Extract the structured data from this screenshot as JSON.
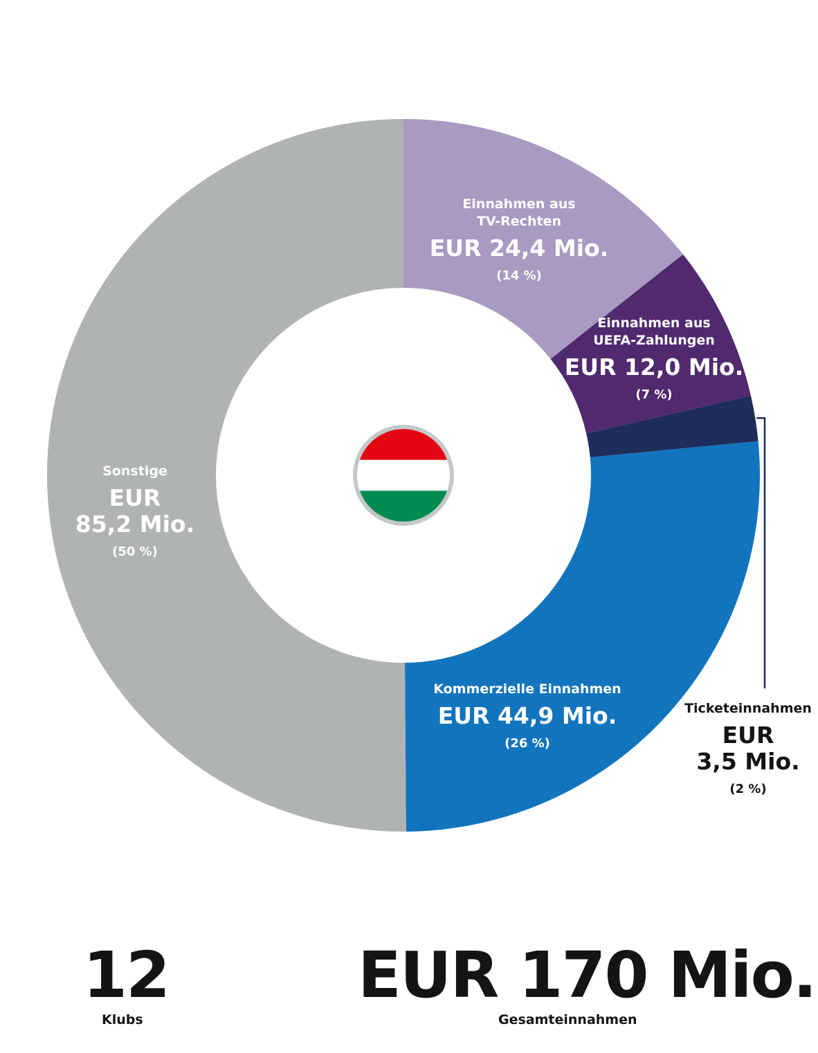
{
  "chart_data": {
    "type": "pie",
    "variant": "donut",
    "total_value": 170,
    "slices": [
      {
        "name_lines": [
          "Einnahmen aus",
          "TV-Rechten"
        ],
        "value": 24.4,
        "value_lines": [
          "EUR 24,4 Mio."
        ],
        "percent_label": "(14 %)",
        "color": "#a99ac1",
        "text_color": "#ffffff"
      },
      {
        "name_lines": [
          "Einnahmen aus",
          "UEFA-Zahlungen"
        ],
        "value": 12.0,
        "value_lines": [
          "EUR 12,0 Mio."
        ],
        "percent_label": "(7 %)",
        "color": "#50296e",
        "text_color": "#ffffff"
      },
      {
        "name_lines": [
          "Ticketeinnahmen"
        ],
        "value": 3.5,
        "value_lines": [
          "EUR",
          "3,5 Mio."
        ],
        "percent_label": "(2 %)",
        "color": "#1e2d5a",
        "text_color": "#141414",
        "callout": true
      },
      {
        "name_lines": [
          "Kommerzielle Einnahmen"
        ],
        "value": 44.9,
        "value_lines": [
          "EUR 44,9 Mio."
        ],
        "percent_label": "(26 %)",
        "color": "#1274bd",
        "text_color": "#ffffff"
      },
      {
        "name_lines": [
          "Sonstige"
        ],
        "value": 85.2,
        "value_lines": [
          "EUR",
          "85,2 Mio."
        ],
        "percent_label": "(50 %)",
        "color": "#b0b3b3",
        "text_color": "#ffffff"
      }
    ],
    "center_emblem": {
      "name": "hungary-flag-icon",
      "colors": [
        "#e30613",
        "#ffffff",
        "#008c50"
      ],
      "ring_color": "#c3c8c8"
    }
  },
  "stats": {
    "clubs_value": "12",
    "clubs_label": "Klubs",
    "total_value": "EUR 170 Mio.",
    "total_label": "Gesamteinnahmen"
  }
}
